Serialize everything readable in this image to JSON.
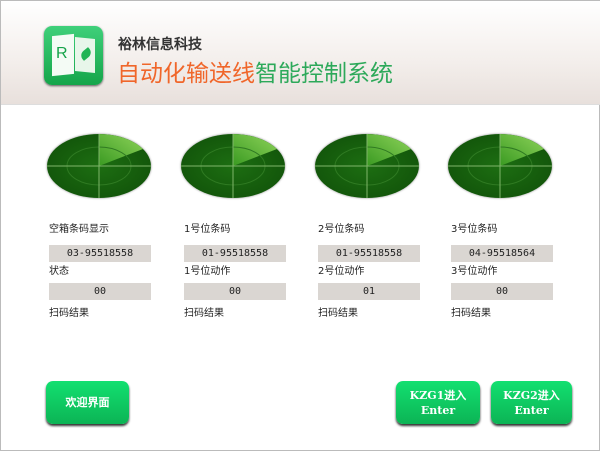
{
  "header": {
    "company": "裕林信息科技",
    "title_part1": "自动化输送线",
    "title_part2": "智能控制系统",
    "logo_letter": "R"
  },
  "columns": [
    {
      "label1": "空箱条码显示",
      "value1": "03-95518558",
      "label2": "状态",
      "value2": "00",
      "label3": "扫码结果"
    },
    {
      "label1": "1号位条码",
      "value1": "01-95518558",
      "label2": "1号位动作",
      "value2": "00",
      "label3": "扫码结果"
    },
    {
      "label1": "2号位条码",
      "value1": "01-95518558",
      "label2": "2号位动作",
      "value2": "01",
      "label3": "扫码结果"
    },
    {
      "label1": "3号位条码",
      "value1": "04-95518564",
      "label2": "3号位动作",
      "value2": "00",
      "label3": "扫码结果"
    }
  ],
  "buttons": {
    "welcome": "欢迎界面",
    "kzg1_line1": "KZG1进入",
    "kzg1_line2": "Enter",
    "kzg2_line1": "KZG2进入",
    "kzg2_line2": "Enter"
  },
  "colors": {
    "accent_green": "#0cb455",
    "title_orange": "#f0662a",
    "title_green": "#2da95a"
  }
}
